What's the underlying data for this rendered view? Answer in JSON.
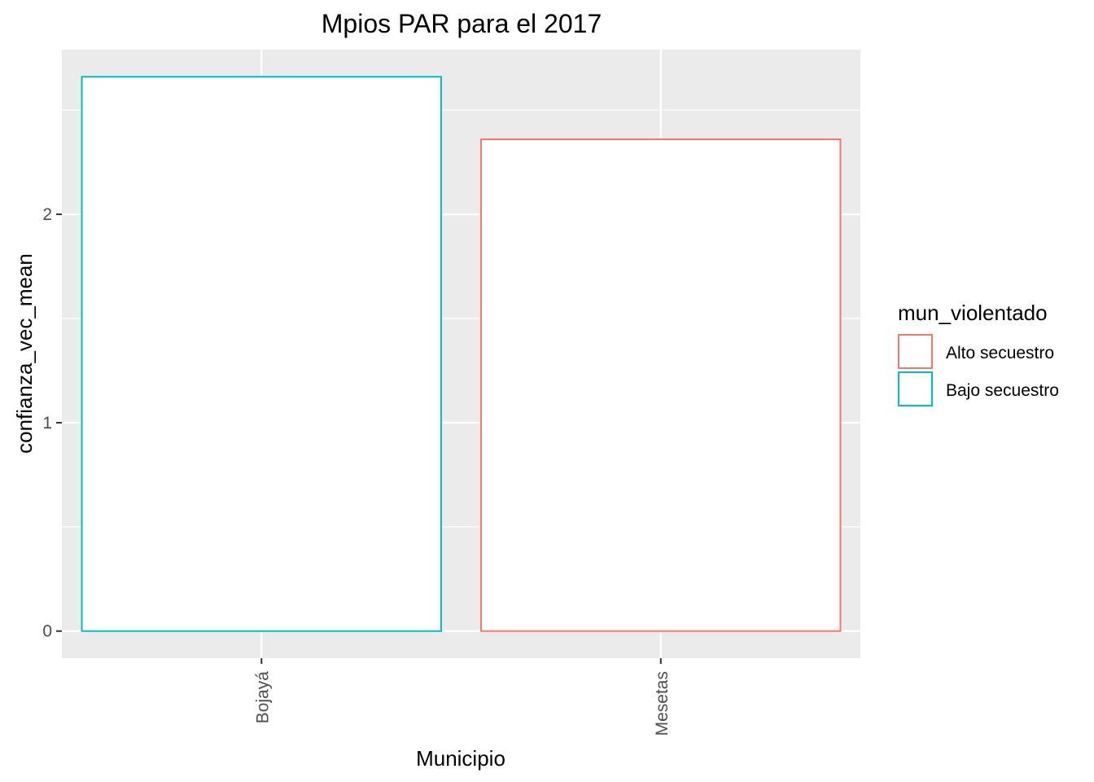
{
  "chart_data": {
    "type": "bar",
    "title": "Mpios PAR para el 2017",
    "xlabel": "Municipio",
    "ylabel": "confianza_vec_mean",
    "categories": [
      "Bojayá",
      "Mesetas"
    ],
    "values": [
      2.66,
      2.36
    ],
    "groups": [
      "Bajo secuestro",
      "Alto secuestro"
    ],
    "ylim": [
      -0.13,
      2.79
    ],
    "yticks": [
      0,
      1,
      2
    ],
    "grid": true,
    "legend": {
      "title": "mun_violentado",
      "position": "right",
      "entries": [
        {
          "label": "Alto secuestro",
          "color": "#F8766D"
        },
        {
          "label": "Bajo secuestro",
          "color": "#00BFC4"
        }
      ]
    },
    "colors": {
      "Alto secuestro": "#F8766D",
      "Bajo secuestro": "#00BFC4",
      "panel": "#EBEBEB",
      "bar_fill": "#FFFFFF"
    }
  }
}
